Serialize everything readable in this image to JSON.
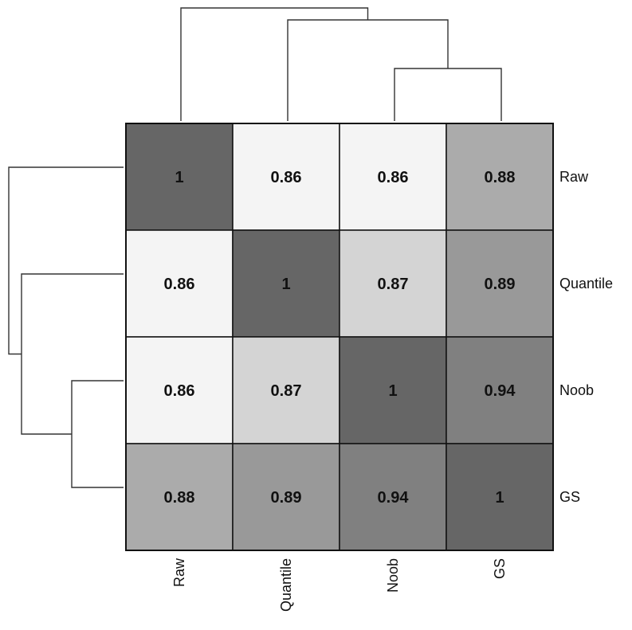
{
  "chart_data": {
    "type": "heatmap",
    "rows": [
      "Raw",
      "Quantile",
      "Noob",
      "GS"
    ],
    "columns": [
      "Raw",
      "Quantile",
      "Noob",
      "GS"
    ],
    "values": [
      [
        1,
        0.86,
        0.86,
        0.88
      ],
      [
        0.86,
        1,
        0.87,
        0.89
      ],
      [
        0.86,
        0.87,
        1,
        0.94
      ],
      [
        0.88,
        0.89,
        0.94,
        1
      ]
    ],
    "value_labels": [
      [
        "1",
        "0.86",
        "0.86",
        "0.88"
      ],
      [
        "0.86",
        "1",
        "0.87",
        "0.89"
      ],
      [
        "0.86",
        "0.87",
        "1",
        "0.94"
      ],
      [
        "0.88",
        "0.89",
        "0.94",
        "1"
      ]
    ],
    "colors": {
      "1": "#666666",
      "0.94": "#808080",
      "0.89": "#999999",
      "0.88": "#ababab",
      "0.87": "#d4d4d4",
      "0.86": "#f4f4f4"
    },
    "column_dendrogram": {
      "position": "top",
      "merges": [
        [
          "Noob",
          "GS"
        ],
        [
          "Quantile",
          "Noob+GS"
        ],
        [
          "Raw",
          "Quantile+Noob+GS"
        ]
      ]
    },
    "row_dendrogram": {
      "position": "left",
      "merges": [
        [
          "Noob",
          "GS"
        ],
        [
          "Quantile",
          "Noob+GS"
        ],
        [
          "Raw",
          "Quantile+Noob+GS"
        ]
      ]
    },
    "row_label_position": "right",
    "column_label_position": "bottom",
    "column_label_rotation": "vertical"
  }
}
